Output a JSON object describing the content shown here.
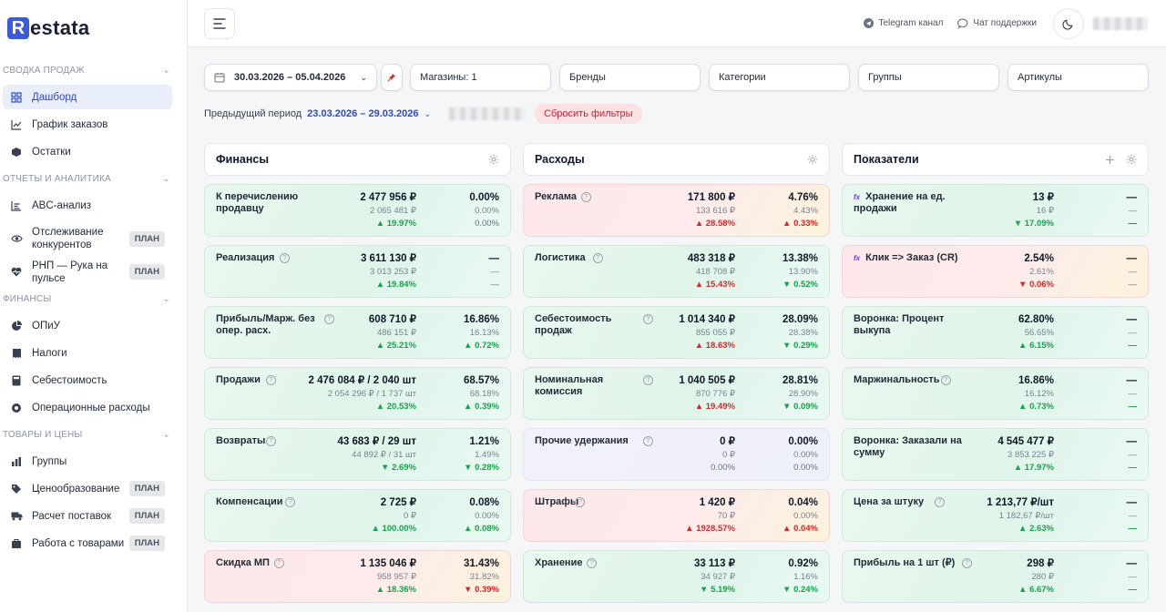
{
  "app": {
    "logo_letter": "R",
    "logo_text": "estata"
  },
  "sidebar": {
    "sections": [
      {
        "title": "СВОДКА ПРОДАЖ",
        "items": [
          {
            "label": "Дашборд",
            "icon": "dashboard-icon",
            "active": true
          },
          {
            "label": "График заказов",
            "icon": "chart-icon"
          },
          {
            "label": "Остатки",
            "icon": "box-icon"
          }
        ]
      },
      {
        "title": "ОТЧЕТЫ И АНАЛИТИКА",
        "items": [
          {
            "label": "ABC-анализ",
            "icon": "list-icon"
          },
          {
            "label": "Отслеживание конкурентов",
            "icon": "eye-icon",
            "badge": "ПЛАН"
          },
          {
            "label": "РНП — Рука на пульсе",
            "icon": "heart-pulse-icon",
            "badge": "ПЛАН"
          }
        ]
      },
      {
        "title": "ФИНАНСЫ",
        "items": [
          {
            "label": "ОПиУ",
            "icon": "pie-icon"
          },
          {
            "label": "Налоги",
            "icon": "tax-icon"
          },
          {
            "label": "Себестоимость",
            "icon": "calculator-icon"
          },
          {
            "label": "Операционные расходы",
            "icon": "expenses-icon"
          }
        ]
      },
      {
        "title": "ТОВАРЫ И ЦЕНЫ",
        "items": [
          {
            "label": "Группы",
            "icon": "groups-icon"
          },
          {
            "label": "Ценообразование",
            "icon": "tag-icon",
            "badge": "ПЛАН"
          },
          {
            "label": "Расчет поставок",
            "icon": "truck-icon",
            "badge": "ПЛАН"
          },
          {
            "label": "Работа с товарами",
            "icon": "products-icon",
            "badge": "ПЛАН"
          }
        ]
      }
    ]
  },
  "topbar": {
    "telegram": "Telegram канал",
    "support": "Чат поддержки"
  },
  "filters": {
    "date_range": "30.03.2026 – 05.04.2026",
    "stores": "Магазины: 1",
    "brands": "Бренды",
    "categories": "Категории",
    "groups": "Группы",
    "articles": "Артикулы"
  },
  "prev_period": {
    "label": "Предыдущий период",
    "value": "23.03.2026 – 29.03.2026",
    "reset": "Сбросить фильтры"
  },
  "columns": [
    {
      "title": "Финансы",
      "cards": [
        {
          "label": "К перечислению продавцу",
          "help": false,
          "color": "green",
          "main": "2 477 956 ₽",
          "prev": "2 065 481 ₽",
          "delta": "19.97%",
          "dir": "up",
          "pct": "0.00%",
          "pct_prev": "0.00%",
          "pct_delta": "0.00%",
          "pct_dir": "flat"
        },
        {
          "label": "Реализация",
          "help": true,
          "color": "green",
          "main": "3 611 130 ₽",
          "prev": "3 013 253 ₽",
          "delta": "19.84%",
          "dir": "up",
          "pct": "—",
          "pct_prev": "—",
          "pct_delta": "—",
          "pct_dir": "none"
        },
        {
          "label": "Прибыль/Марж. без опер. расх.",
          "help": true,
          "color": "green",
          "main": "608 710 ₽",
          "prev": "486 151 ₽",
          "delta": "25.21%",
          "dir": "up",
          "pct": "16.86%",
          "pct_prev": "16.13%",
          "pct_delta": "0.72%",
          "pct_dir": "up"
        },
        {
          "label": "Продажи",
          "help": true,
          "color": "green",
          "main": "2 476 084 ₽ / 2 040 шт",
          "prev": "2 054 296 ₽ / 1 737 шт",
          "delta": "20.53%",
          "dir": "up",
          "pct": "68.57%",
          "pct_prev": "68.18%",
          "pct_delta": "0.39%",
          "pct_dir": "up"
        },
        {
          "label": "Возвраты",
          "help": true,
          "color": "green",
          "main": "43 683 ₽ / 29 шт",
          "prev": "44 892 ₽ / 31 шт",
          "delta": "2.69%",
          "dir": "downg",
          "pct": "1.21%",
          "pct_prev": "1.49%",
          "pct_delta": "0.28%",
          "pct_dir": "downg"
        },
        {
          "label": "Компенсации",
          "help": true,
          "color": "green",
          "main": "2 725 ₽",
          "prev": "0 ₽",
          "delta": "100.00%",
          "dir": "up",
          "pct": "0.08%",
          "pct_prev": "0.00%",
          "pct_delta": "0.08%",
          "pct_dir": "up"
        },
        {
          "label": "Скидка МП",
          "help": true,
          "color": "red",
          "main": "1 135 046 ₽",
          "prev": "958 957 ₽",
          "delta": "18.36%",
          "dir": "up",
          "pct": "31.43%",
          "pct_prev": "31.82%",
          "pct_delta": "0.39%",
          "pct_dir": "downr"
        }
      ]
    },
    {
      "title": "Расходы",
      "cards": [
        {
          "label": "Реклама",
          "help": true,
          "color": "red",
          "main": "171 800 ₽",
          "prev": "133 616 ₽",
          "delta": "28.58%",
          "dir": "upr",
          "pct": "4.76%",
          "pct_prev": "4.43%",
          "pct_delta": "0.33%",
          "pct_dir": "upr"
        },
        {
          "label": "Логистика",
          "help": true,
          "color": "green",
          "main": "483 318 ₽",
          "prev": "418 708 ₽",
          "delta": "15.43%",
          "dir": "upr",
          "pct": "13.38%",
          "pct_prev": "13.90%",
          "pct_delta": "0.52%",
          "pct_dir": "downg"
        },
        {
          "label": "Себестоимость продаж",
          "help": true,
          "color": "green",
          "main": "1 014 340 ₽",
          "prev": "855 055 ₽",
          "delta": "18.63%",
          "dir": "upr",
          "pct": "28.09%",
          "pct_prev": "28.38%",
          "pct_delta": "0.29%",
          "pct_dir": "downg"
        },
        {
          "label": "Номинальная комиссия",
          "help": true,
          "color": "green",
          "main": "1 040 505 ₽",
          "prev": "870 776 ₽",
          "delta": "19.49%",
          "dir": "upr",
          "pct": "28.81%",
          "pct_prev": "28.90%",
          "pct_delta": "0.09%",
          "pct_dir": "downg"
        },
        {
          "label": "Прочие удержания",
          "help": true,
          "color": "neutral",
          "main": "0 ₽",
          "prev": "0 ₽",
          "delta": "0.00%",
          "dir": "flat",
          "pct": "0.00%",
          "pct_prev": "0.00%",
          "pct_delta": "0.00%",
          "pct_dir": "flat"
        },
        {
          "label": "Штрафы",
          "help": true,
          "color": "red",
          "main": "1 420 ₽",
          "prev": "70 ₽",
          "delta": "1928.57%",
          "dir": "upr",
          "pct": "0.04%",
          "pct_prev": "0.00%",
          "pct_delta": "0.04%",
          "pct_dir": "upr"
        },
        {
          "label": "Хранение",
          "help": true,
          "color": "green",
          "main": "33 113 ₽",
          "prev": "34 927 ₽",
          "delta": "5.19%",
          "dir": "downg",
          "pct": "0.92%",
          "pct_prev": "1.16%",
          "pct_delta": "0.24%",
          "pct_dir": "downg"
        }
      ]
    },
    {
      "title": "Показатели",
      "cards": [
        {
          "label": "Хранение на ед. продажи",
          "fx": true,
          "color": "green",
          "main": "13 ₽",
          "prev": "16 ₽",
          "delta": "17.09%",
          "dir": "downg",
          "pct": "—",
          "pct_prev": "—",
          "pct_delta": "—",
          "pct_dir": "dashr"
        },
        {
          "label": "Клик => Заказ (CR)",
          "fx": true,
          "color": "red",
          "main": "2.54%",
          "prev": "2.61%",
          "delta": "0.06%",
          "dir": "downr",
          "pct": "—",
          "pct_prev": "—",
          "pct_delta": "—",
          "pct_dir": "none"
        },
        {
          "label": "Воронка: Процент выкупа",
          "help": false,
          "color": "green",
          "main": "62.80%",
          "prev": "56.65%",
          "delta": "6.15%",
          "dir": "up",
          "pct": "—",
          "pct_prev": "—",
          "pct_delta": "—",
          "pct_dir": "dashg"
        },
        {
          "label": "Маржинальность",
          "help": true,
          "color": "green",
          "main": "16.86%",
          "prev": "16.12%",
          "delta": "0.73%",
          "dir": "up",
          "pct": "—",
          "pct_prev": "—",
          "pct_delta": "—",
          "pct_dir": "dashg"
        },
        {
          "label": "Воронка: Заказали на сумму",
          "help": false,
          "color": "green",
          "main": "4 545 477 ₽",
          "prev": "3 853 225 ₽",
          "delta": "17.97%",
          "dir": "up",
          "pct": "—",
          "pct_prev": "—",
          "pct_delta": "—",
          "pct_dir": "dashg"
        },
        {
          "label": "Цена за штуку",
          "help": true,
          "color": "green",
          "main": "1 213,77 ₽/шт",
          "prev": "1 182,67 ₽/шт",
          "delta": "2.63%",
          "dir": "up",
          "pct": "—",
          "pct_prev": "—",
          "pct_delta": "—",
          "pct_dir": "dashg"
        },
        {
          "label": "Прибыль на 1 шт (₽)",
          "help": true,
          "color": "green",
          "main": "298 ₽",
          "prev": "280 ₽",
          "delta": "6.67%",
          "dir": "up",
          "pct": "—",
          "pct_prev": "—",
          "pct_delta": "—",
          "pct_dir": "dashg"
        }
      ]
    }
  ],
  "colors": {
    "accent": "#2b4cc9",
    "up": "#16a34a",
    "down": "#dc2626",
    "logo": "#3b5bdb"
  }
}
